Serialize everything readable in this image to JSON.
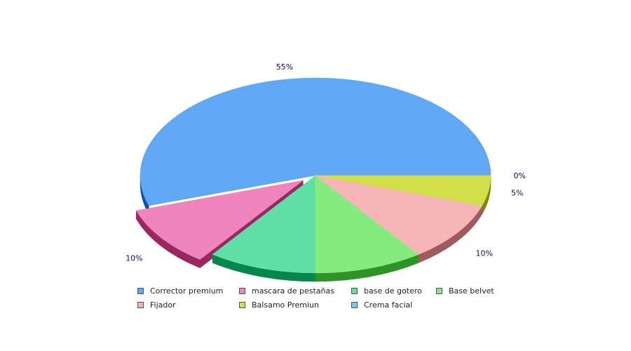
{
  "chart_data": {
    "type": "pie",
    "title": "",
    "slices": [
      {
        "label": "Corrector premium",
        "value": 55,
        "value_label": "55%",
        "color": "#60a8f4",
        "side_color": "#0c52a3",
        "exploded": false
      },
      {
        "label": "mascara de pestañas",
        "value": 10,
        "value_label": "10%",
        "color": "#f084bd",
        "side_color": "#9b2761",
        "exploded": true
      },
      {
        "label": "base de gotero",
        "value": 10,
        "value_label": "",
        "color": "#60e0a6",
        "side_color": "#05874b",
        "exploded": false
      },
      {
        "label": "Base belvet",
        "value": 10,
        "value_label": "",
        "color": "#85eb7f",
        "side_color": "#2f9428",
        "exploded": false
      },
      {
        "label": "Fijador",
        "value": 10,
        "value_label": "10%",
        "color": "#f6b6b8",
        "side_color": "#a05c5c",
        "exploded": false
      },
      {
        "label": "Balsamo Premiun",
        "value": 5,
        "value_label": "5%",
        "color": "#d1e04a",
        "side_color": "#7a8707",
        "exploded": false
      },
      {
        "label": "Crema facial",
        "value": 0,
        "value_label": "0%",
        "color": "#80c4ee",
        "side_color": "#2f7fb3",
        "exploded": false
      }
    ],
    "legend_position": "bottom"
  }
}
